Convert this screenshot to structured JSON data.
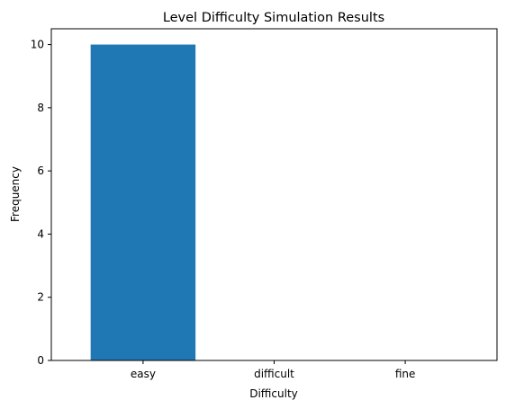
{
  "chart_data": {
    "type": "bar",
    "title": "Level Difficulty Simulation Results",
    "xlabel": "Difficulty",
    "ylabel": "Frequency",
    "categories": [
      "easy",
      "difficult",
      "fine"
    ],
    "values": [
      10,
      0,
      0
    ],
    "ylim": [
      0,
      10.5
    ],
    "yticks": [
      0,
      2,
      4,
      6,
      8,
      10
    ],
    "bar_color": "#1f77b4",
    "grid": false,
    "legend": "none"
  }
}
